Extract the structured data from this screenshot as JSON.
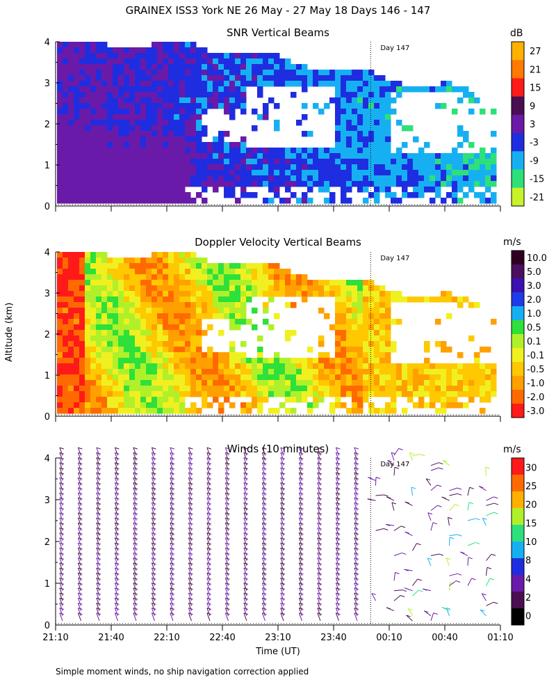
{
  "page_title": "GRAINEX ISS3 York NE  26 May - 27 May 18 Days 146 - 147",
  "x_axis_label": "Time (UT)",
  "y_axis_label": "Altitude (km)",
  "footnote": "Simple moment winds, no ship navigation correction applied",
  "chart_data": [
    {
      "type": "heatmap",
      "title": "SNR Vertical Beams",
      "unit": "dB",
      "xlabel": "",
      "ylabel": "Altitude (km)",
      "x_ticks": [
        "21:10",
        "21:40",
        "22:10",
        "22:40",
        "23:10",
        "23:40",
        "00:10",
        "00:40",
        "01:10"
      ],
      "y_ticks": [
        0,
        1,
        2,
        3,
        4
      ],
      "ylim": [
        0,
        4
      ],
      "day_marker": {
        "time": "00:00",
        "label": "Day 147"
      },
      "colorbar": {
        "labels": [
          "27",
          "21",
          "15",
          "9",
          "3",
          "-3",
          "-9",
          "-15",
          "-21"
        ],
        "colors": [
          "#ffb000",
          "#ff7a00",
          "#ff1a1a",
          "#4a0f50",
          "#6a1aa8",
          "#1f2de0",
          "#16b0f2",
          "#2ee07a",
          "#c8f22a"
        ]
      }
    },
    {
      "type": "heatmap",
      "title": "Doppler Velocity Vertical Beams",
      "unit": "m/s",
      "xlabel": "",
      "ylabel": "Altitude (km)",
      "x_ticks": [
        "21:10",
        "21:40",
        "22:10",
        "22:40",
        "23:10",
        "23:40",
        "00:10",
        "00:40",
        "01:10"
      ],
      "y_ticks": [
        0,
        1,
        2,
        3,
        4
      ],
      "ylim": [
        0,
        4
      ],
      "day_marker": {
        "time": "00:00",
        "label": "Day 147"
      },
      "colorbar": {
        "labels": [
          "10.0",
          "5.0",
          "3.0",
          "2.0",
          "1.0",
          "0.5",
          "0.1",
          "-0.1",
          "-0.5",
          "-1.0",
          "-2.0",
          "-3.0"
        ],
        "colors": [
          "#300020",
          "#4a0f60",
          "#3a10b0",
          "#1f3ae8",
          "#16b0f2",
          "#2ee03a",
          "#b0f02a",
          "#f0f020",
          "#ffc800",
          "#ffa000",
          "#ff6a00",
          "#ff1a1a"
        ]
      }
    },
    {
      "type": "scatter",
      "title": "Winds (10 minutes)",
      "unit": "m/s",
      "xlabel": "Time (UT)",
      "ylabel": "Altitude (km)",
      "x_ticks": [
        "21:10",
        "21:40",
        "22:10",
        "22:40",
        "23:10",
        "23:40",
        "00:10",
        "00:40",
        "01:10"
      ],
      "y_ticks": [
        0,
        1,
        2,
        3,
        4
      ],
      "ylim": [
        0,
        4
      ],
      "day_marker": {
        "time": "00:00",
        "label": "Day 147"
      },
      "colorbar": {
        "labels": [
          "30",
          "25",
          "20",
          "15",
          "10",
          "8",
          "4",
          "2",
          "0"
        ],
        "colors": [
          "#ff1a1a",
          "#ff6a00",
          "#ffb000",
          "#b0f02a",
          "#2ee07a",
          "#16b0f2",
          "#1f2de0",
          "#6a1aa8",
          "#4a0f50",
          "#000000"
        ]
      }
    }
  ]
}
